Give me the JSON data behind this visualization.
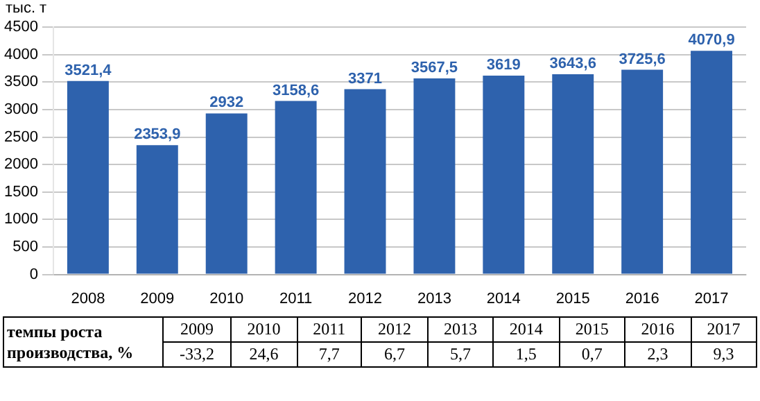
{
  "chart_data": {
    "type": "bar",
    "ylabel": "тыс. т",
    "categories": [
      "2008",
      "2009",
      "2010",
      "2011",
      "2012",
      "2013",
      "2014",
      "2015",
      "2016",
      "2017"
    ],
    "values": [
      3521.4,
      2353.9,
      2932,
      3158.6,
      3371,
      3567.5,
      3619,
      3643.6,
      3725.6,
      4070.9
    ],
    "value_labels": [
      "3521,4",
      "2353,9",
      "2932",
      "3158,6",
      "3371",
      "3567,5",
      "3619",
      "3643,6",
      "3725,6",
      "4070,9"
    ],
    "color": "#2e62ad",
    "ylim": [
      0,
      4500
    ],
    "yticks": [
      0,
      500,
      1000,
      1500,
      2000,
      2500,
      3000,
      3500,
      4000,
      4500
    ],
    "grid": "y",
    "legend": false,
    "annotations": [
      "темпы роста производства, %",
      "-33,2",
      "24,6",
      "7,7",
      "6,7",
      "5,7",
      "1,5",
      "0,7",
      "2,3",
      "9,3"
    ]
  }
}
